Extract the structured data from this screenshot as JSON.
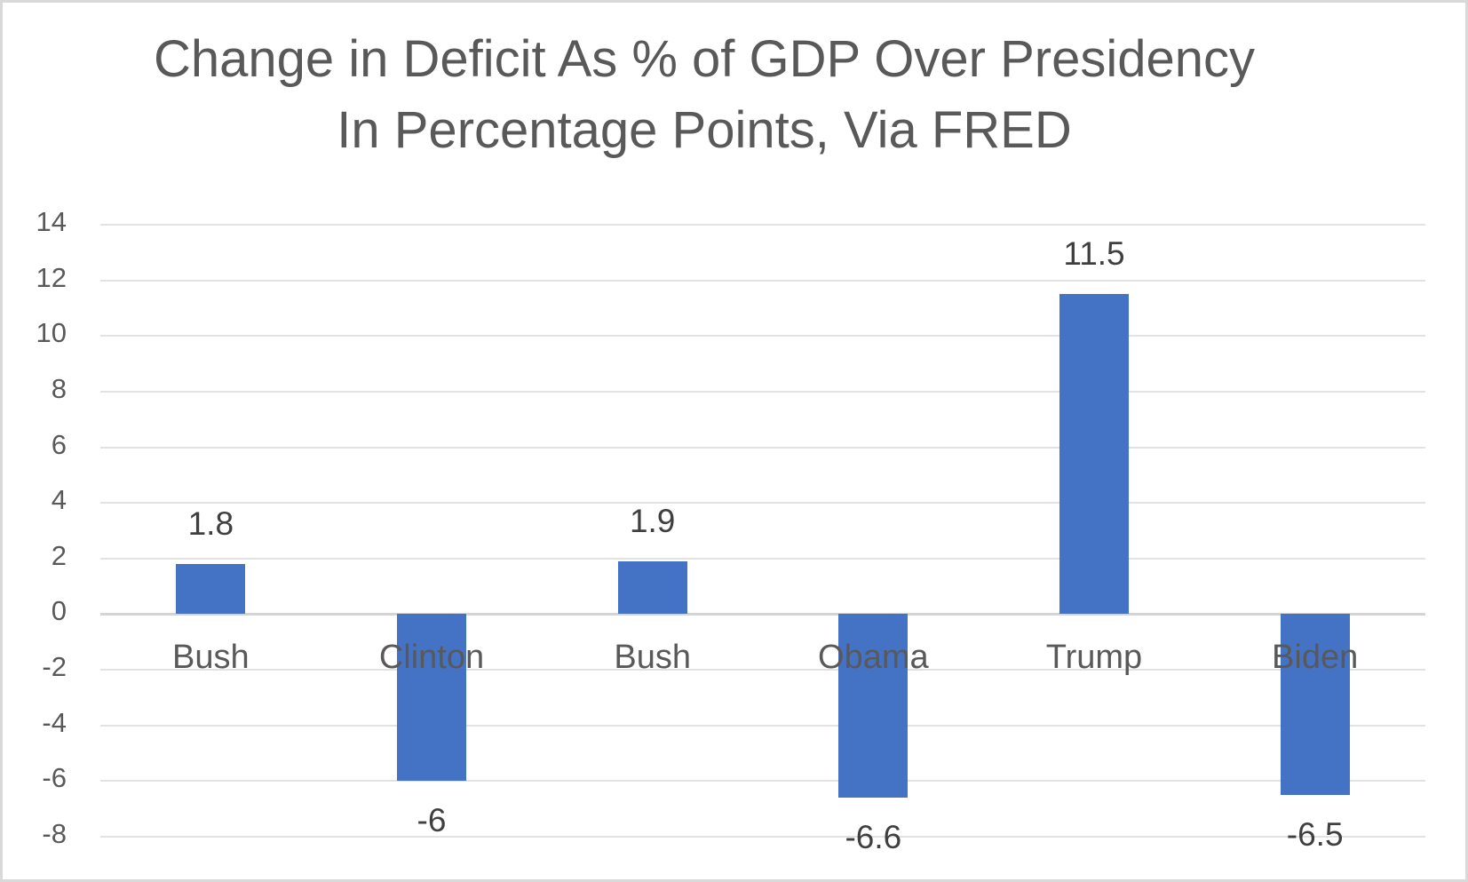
{
  "title_lines": [
    "Change in Deficit As % of GDP Over Presidency",
    "In Percentage Points, Via FRED"
  ],
  "chart_data": {
    "type": "bar",
    "title": "Change in Deficit As % of GDP Over Presidency In Percentage Points, Via FRED",
    "categories": [
      "Bush",
      "Clinton",
      "Bush",
      "Obama",
      "Trump",
      "Biden"
    ],
    "values": [
      1.8,
      -6,
      1.9,
      -6.6,
      11.5,
      -6.5
    ],
    "data_labels": [
      "1.8",
      "-6",
      "1.9",
      "-6.6",
      "11.5",
      "-6.5"
    ],
    "xlabel": "",
    "ylabel": "",
    "ylim": [
      -8,
      14
    ],
    "yticks": [
      14,
      12,
      10,
      8,
      6,
      4,
      2,
      0,
      -2,
      -4,
      -6,
      -8
    ],
    "grid": true,
    "legend": "none",
    "bar_color": "#4472C4",
    "text_color": "#595959",
    "value_label_color": "#3f3f3f",
    "gridline_color": "#e2e2e2",
    "zero_line_color": "#d4d4d4"
  }
}
